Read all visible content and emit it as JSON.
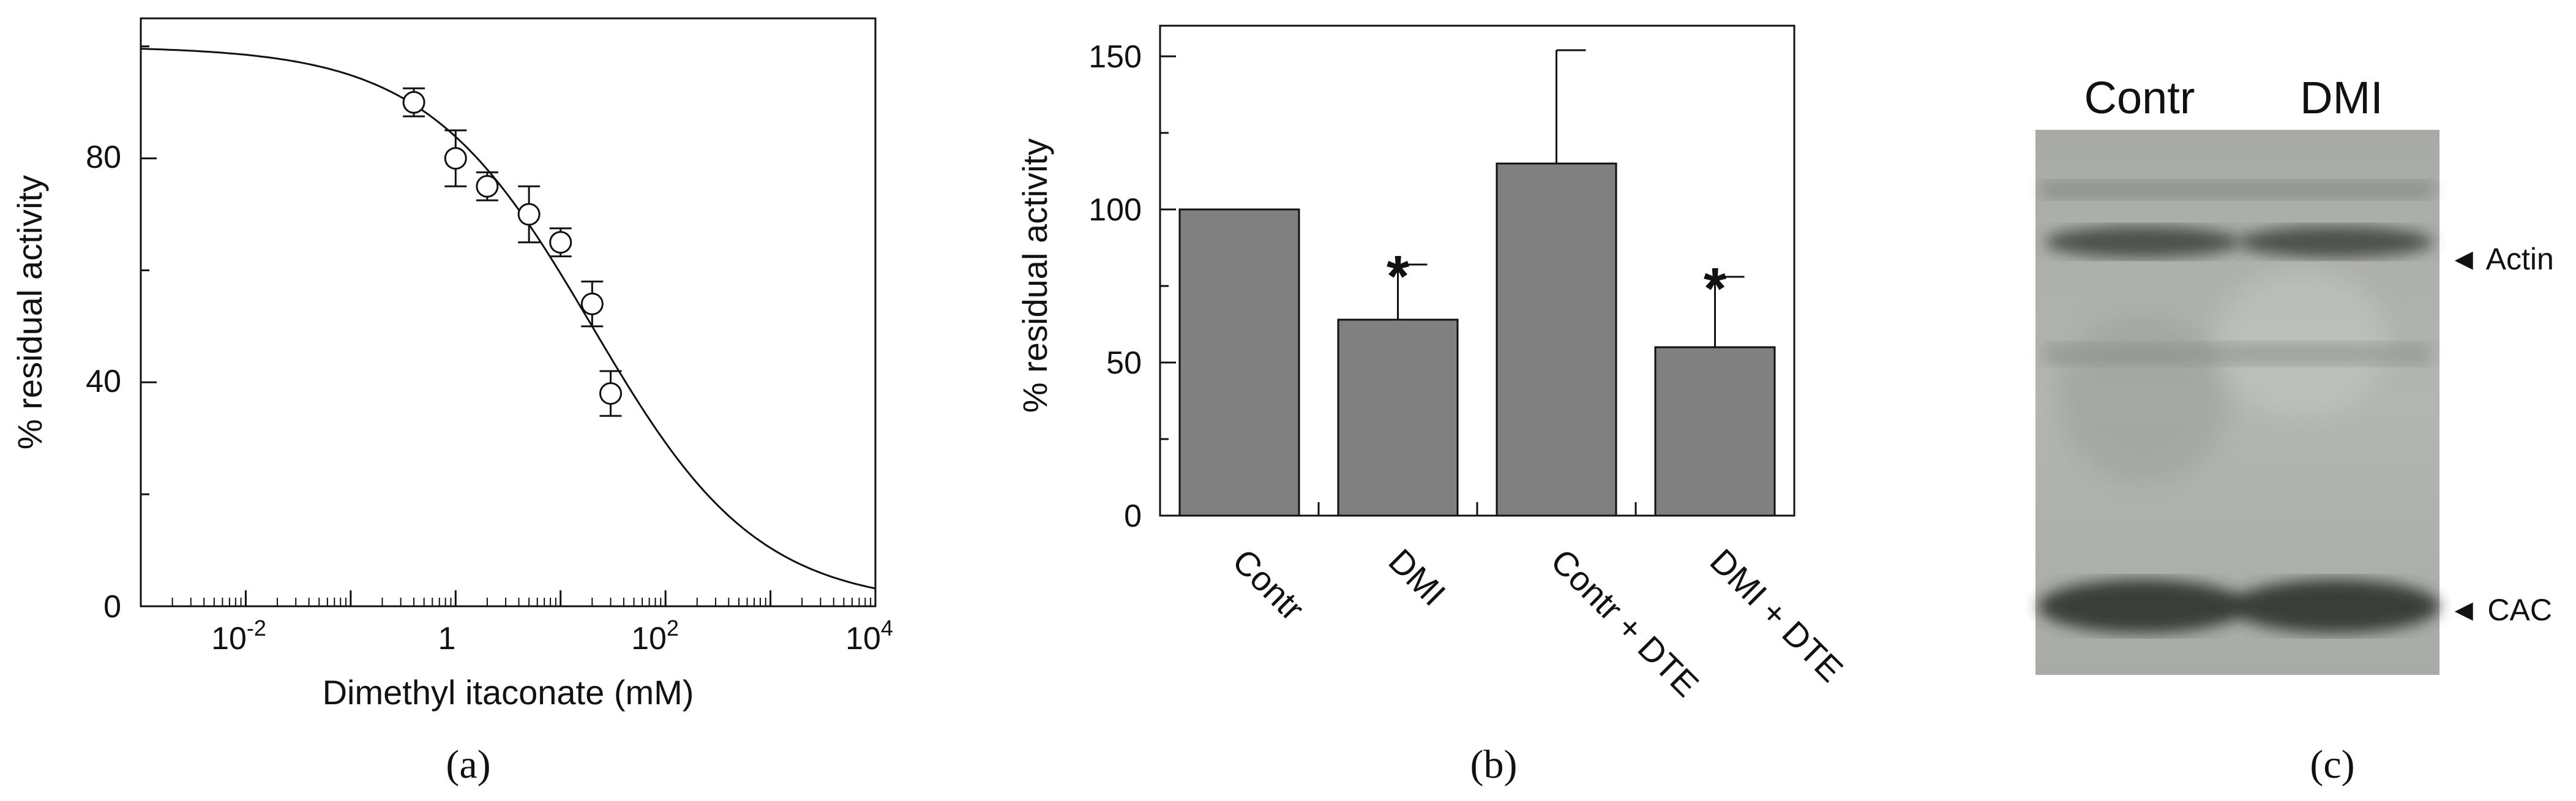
{
  "chart_data": [
    {
      "type": "scatter",
      "panel": "a",
      "xscale": "log",
      "xlabel": "Dimethyl itaconate (mM)",
      "ylabel": "% residual activity",
      "xlim": [
        0.001,
        10000
      ],
      "ylim": [
        0,
        105
      ],
      "xticks": [
        {
          "value": 0.01,
          "base": "10",
          "exp": "-2"
        },
        {
          "value": 100,
          "base": "10",
          "exp": "2"
        },
        {
          "value": 10000,
          "base": "10",
          "exp": "4"
        }
      ],
      "xtick_1": "1",
      "yticks": [
        "0",
        "40",
        "80"
      ],
      "points": [
        {
          "x": 0.4,
          "y": 90,
          "err": 2.5
        },
        {
          "x": 1,
          "y": 80,
          "err": 5
        },
        {
          "x": 2,
          "y": 75,
          "err": 2.5
        },
        {
          "x": 5,
          "y": 70,
          "err": 5
        },
        {
          "x": 10,
          "y": 65,
          "err": 2.5
        },
        {
          "x": 20,
          "y": 54,
          "err": 4
        },
        {
          "x": 30,
          "y": 38,
          "err": 4
        }
      ],
      "fit": {
        "top": 100,
        "ic50": 20,
        "hill": 0.55
      }
    },
    {
      "type": "bar",
      "panel": "b",
      "ylabel": "% residual activity",
      "ylim": [
        0,
        160
      ],
      "yticks": [
        "0",
        "50",
        "100",
        "150"
      ],
      "categories": [
        "Contr",
        "DMI",
        "Contr + DTE",
        "DMI + DTE"
      ],
      "values": [
        100,
        64,
        115,
        55
      ],
      "errors": [
        0,
        18,
        37,
        23
      ],
      "significance": [
        "",
        "*",
        "",
        "*"
      ],
      "bar_color": "#808080"
    }
  ],
  "panels": {
    "a": "(a)",
    "b": "(b)",
    "c": "(c)"
  },
  "blot": {
    "lanes": [
      "Contr",
      "DMI"
    ],
    "bands": [
      "◄ Actin",
      "◄ CAC"
    ]
  }
}
